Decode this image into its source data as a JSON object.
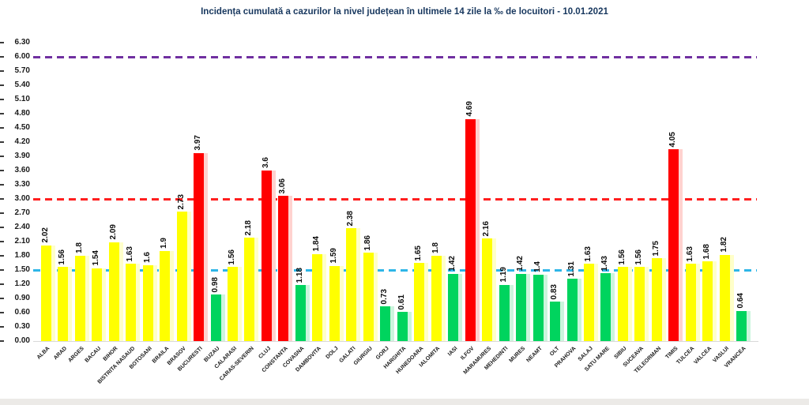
{
  "chart_data": {
    "type": "bar",
    "title": "Incidența cumulată a cazurilor la nivel județean în ultimele 14 zile la ‰ de locuitori - 10.01.2021",
    "xlabel": "",
    "ylabel": "",
    "ylim": [
      0,
      6.3
    ],
    "grid": "off",
    "legend": "none",
    "yticks": [
      "6.30",
      "6.00",
      "5.70",
      "5.40",
      "5.10",
      "4.80",
      "4.50",
      "4.20",
      "3.90",
      "3.60",
      "3.30",
      "3.00",
      "2.70",
      "2.40",
      "2.10",
      "1.80",
      "1.50",
      "1.20",
      "0.90",
      "0.60",
      "0.30",
      "0.00"
    ],
    "threshold_lines": [
      {
        "name": "purple-line",
        "value": 6.0,
        "color": "#7030A0",
        "style": "dashed"
      },
      {
        "name": "red-line",
        "value": 3.0,
        "color": "#FF1F1F",
        "style": "dashed"
      },
      {
        "name": "cyan-line",
        "value": 1.5,
        "color": "#2EB6E8",
        "style": "dashed"
      }
    ],
    "palette": {
      "yellow": {
        "main": "#FFFF00",
        "light": "#FFFFC9"
      },
      "green": {
        "main": "#00D45E",
        "light": "#CCF5DD"
      },
      "red": {
        "main": "#FF0000",
        "light": "#FFD2CF"
      }
    },
    "categories": [
      "ALBA",
      "ARAD",
      "ARGES",
      "BACAU",
      "BIHOR",
      "BISTRITA NASAUD",
      "BOTOSANI",
      "BRAILA",
      "BRASOV",
      "BUCURESTI",
      "BUZAU",
      "CALARASI",
      "CARAS-SEVERIN",
      "CLUJ",
      "CONSTANTA",
      "COVASNA",
      "DAMBOVITA",
      "DOLJ",
      "GALATI",
      "GIURGIU",
      "GORJ",
      "HARGHITA",
      "HUNEDOARA",
      "IALOMITA",
      "IASI",
      "ILFOV",
      "MARAMURES",
      "MEHEDINTI",
      "MURES",
      "NEAMT",
      "OLT",
      "PRAHOVA",
      "SALAJ",
      "SATU MARE",
      "SIBIU",
      "SUCEAVA",
      "TELEORMAN",
      "TIMIS",
      "TULCEA",
      "VALCEA",
      "VASLUI",
      "VRANCEA"
    ],
    "values": [
      2.02,
      1.56,
      1.8,
      1.54,
      2.09,
      1.63,
      1.6,
      1.9,
      2.73,
      3.97,
      0.98,
      1.56,
      2.18,
      3.6,
      3.06,
      1.18,
      1.84,
      1.59,
      2.38,
      1.86,
      0.73,
      0.61,
      1.65,
      1.8,
      1.42,
      4.69,
      2.16,
      1.19,
      1.42,
      1.4,
      0.83,
      1.31,
      1.63,
      1.43,
      1.56,
      1.56,
      1.75,
      4.05,
      1.63,
      1.68,
      1.82,
      0.64
    ],
    "value_labels": [
      "2.02",
      "1.56",
      "1.8",
      "1.54",
      "2.09",
      "1.63",
      "1.6",
      "1.9",
      "2.73",
      "3.97",
      "0.98",
      "1.56",
      "2.18",
      "3.6",
      "3.06",
      "1.18",
      "1.84",
      "1.59",
      "2.38",
      "1.86",
      "0.73",
      "0.61",
      "1.65",
      "1.8",
      "1.42",
      "4.69",
      "2.16",
      "1.19",
      "1.42",
      "1.4",
      "0.83",
      "1.31",
      "1.63",
      "1.43",
      "1.56",
      "1.56",
      "1.75",
      "4.05",
      "1.63",
      "1.68",
      "1.82",
      "0.64"
    ],
    "bar_color_keys": [
      "yellow",
      "yellow",
      "yellow",
      "yellow",
      "yellow",
      "yellow",
      "yellow",
      "yellow",
      "yellow",
      "red",
      "green",
      "yellow",
      "yellow",
      "red",
      "red",
      "green",
      "yellow",
      "yellow",
      "yellow",
      "yellow",
      "green",
      "green",
      "yellow",
      "yellow",
      "green",
      "red",
      "yellow",
      "green",
      "green",
      "green",
      "green",
      "green",
      "yellow",
      "green",
      "yellow",
      "yellow",
      "yellow",
      "red",
      "yellow",
      "yellow",
      "yellow",
      "green"
    ]
  }
}
